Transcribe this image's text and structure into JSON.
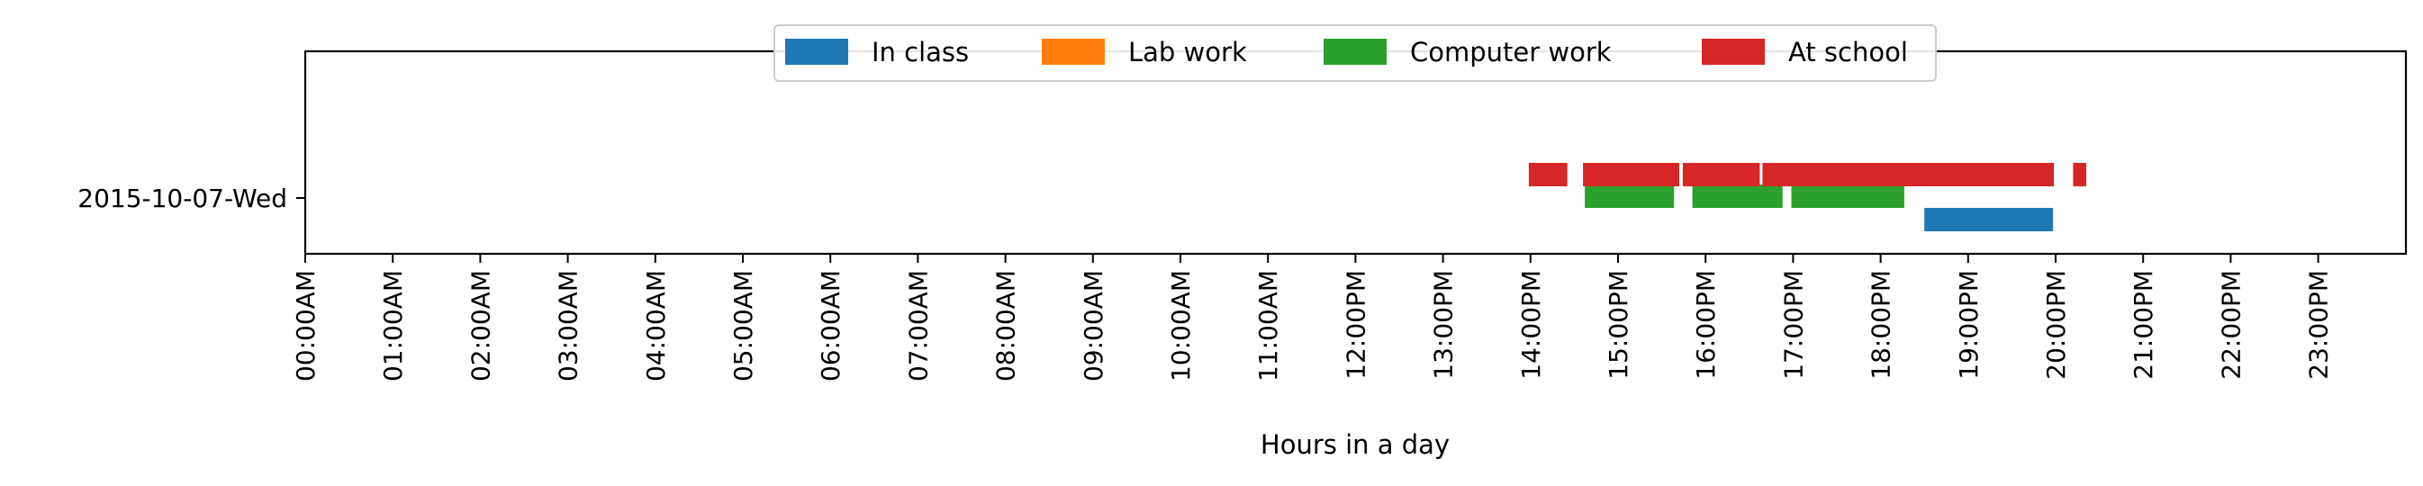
{
  "chart_data": {
    "type": "timeline",
    "xlabel": "Hours in a day",
    "xlim": [
      0,
      24
    ],
    "x_ticks": [
      "00:00AM",
      "01:00AM",
      "02:00AM",
      "03:00AM",
      "04:00AM",
      "05:00AM",
      "06:00AM",
      "07:00AM",
      "08:00AM",
      "09:00AM",
      "10:00AM",
      "11:00AM",
      "12:00PM",
      "13:00PM",
      "14:00PM",
      "15:00PM",
      "16:00PM",
      "17:00PM",
      "18:00PM",
      "19:00PM",
      "20:00PM",
      "21:00PM",
      "22:00PM",
      "23:00PM"
    ],
    "categories": [
      "2015-10-07-Wed"
    ],
    "legend_position": "top-center",
    "grid": false,
    "series": [
      {
        "name": "In class",
        "color": "#1f77b4",
        "intervals": [
          [
            18.5,
            19.97
          ]
        ]
      },
      {
        "name": "Lab work",
        "color": "#ff7f0e",
        "intervals": []
      },
      {
        "name": "Computer work",
        "color": "#2ca02c",
        "intervals": [
          [
            14.62,
            15.64
          ],
          [
            15.85,
            16.88
          ],
          [
            16.98,
            18.27
          ]
        ]
      },
      {
        "name": "At school",
        "color": "#d62728",
        "intervals": [
          [
            13.98,
            14.42
          ],
          [
            14.6,
            15.7
          ],
          [
            15.74,
            16.62
          ],
          [
            16.65,
            19.98
          ],
          [
            20.2,
            20.35
          ]
        ]
      }
    ]
  }
}
